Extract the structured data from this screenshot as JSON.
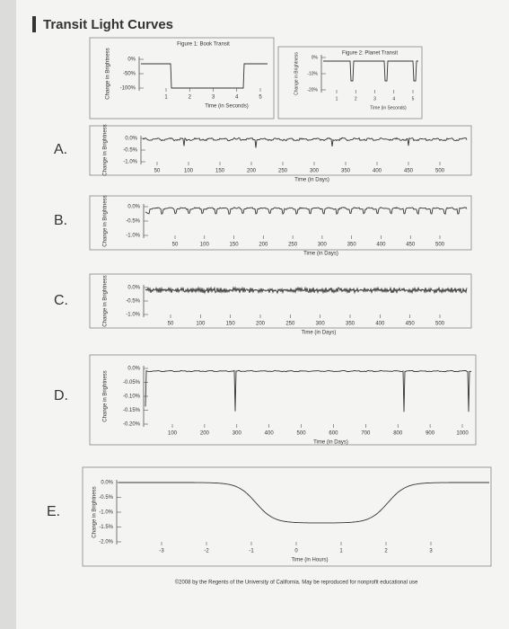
{
  "header": {
    "title": "Transit Light Curves"
  },
  "figure1": {
    "title": "Figure 1: Book Transit",
    "y_label": "Change in Brightness",
    "y_ticks": [
      "0%",
      "-50%",
      "-100%"
    ],
    "x_ticks": [
      "1",
      "2",
      "3",
      "4",
      "5"
    ],
    "x_label": "Time (in Seconds)"
  },
  "figure2": {
    "title": "Figure 2: Planet Transit",
    "y_label": "Change in Brightness",
    "y_ticks": [
      "0%",
      "-10%",
      "-20%"
    ],
    "x_ticks": [
      "1",
      "2",
      "3",
      "4",
      "5"
    ],
    "x_label": "Time (in Seconds)"
  },
  "panels": [
    {
      "letter": "A.",
      "y_label": "Change in Brightness",
      "y_ticks": [
        "0.0%",
        "-0.5%",
        "-1.0%"
      ],
      "x_ticks": [
        "50",
        "100",
        "150",
        "200",
        "250",
        "300",
        "350",
        "400",
        "450",
        "500"
      ],
      "x_label": "Time (in Days)"
    },
    {
      "letter": "B.",
      "y_label": "Change in Brightness",
      "y_ticks": [
        "0.0%",
        "-0.5%",
        "-1.0%"
      ],
      "x_ticks": [
        "50",
        "100",
        "150",
        "200",
        "250",
        "300",
        "350",
        "400",
        "450",
        "500"
      ],
      "x_label": "Time (in Days)"
    },
    {
      "letter": "C.",
      "y_label": "Change in Brightness",
      "y_ticks": [
        "0.0%",
        "-0.5%",
        "-1.0%"
      ],
      "x_ticks": [
        "50",
        "100",
        "150",
        "200",
        "250",
        "300",
        "350",
        "400",
        "450",
        "500"
      ],
      "x_label": "Time (in Days)"
    },
    {
      "letter": "D.",
      "y_label": "Change in Brightness",
      "y_ticks": [
        "0.0%",
        "-0.05%",
        "-0.10%",
        "-0.15%",
        "-0.20%"
      ],
      "x_ticks": [
        "100",
        "200",
        "300",
        "400",
        "500",
        "600",
        "700",
        "800",
        "900",
        "1000"
      ],
      "x_label": "Time (in Days)"
    },
    {
      "letter": "E.",
      "y_label": "Change in Brightness",
      "y_ticks": [
        "0.0%",
        "-0.5%",
        "-1.0%",
        "-1.5%",
        "-2.0%"
      ],
      "x_ticks": [
        "-3",
        "-2",
        "-1",
        "0",
        "1",
        "2",
        "3"
      ],
      "x_label": "Time (in Hours)"
    }
  ],
  "footer": "©2008 by the Regents of the University of California. May be reproduced for nonprofit educational use"
}
